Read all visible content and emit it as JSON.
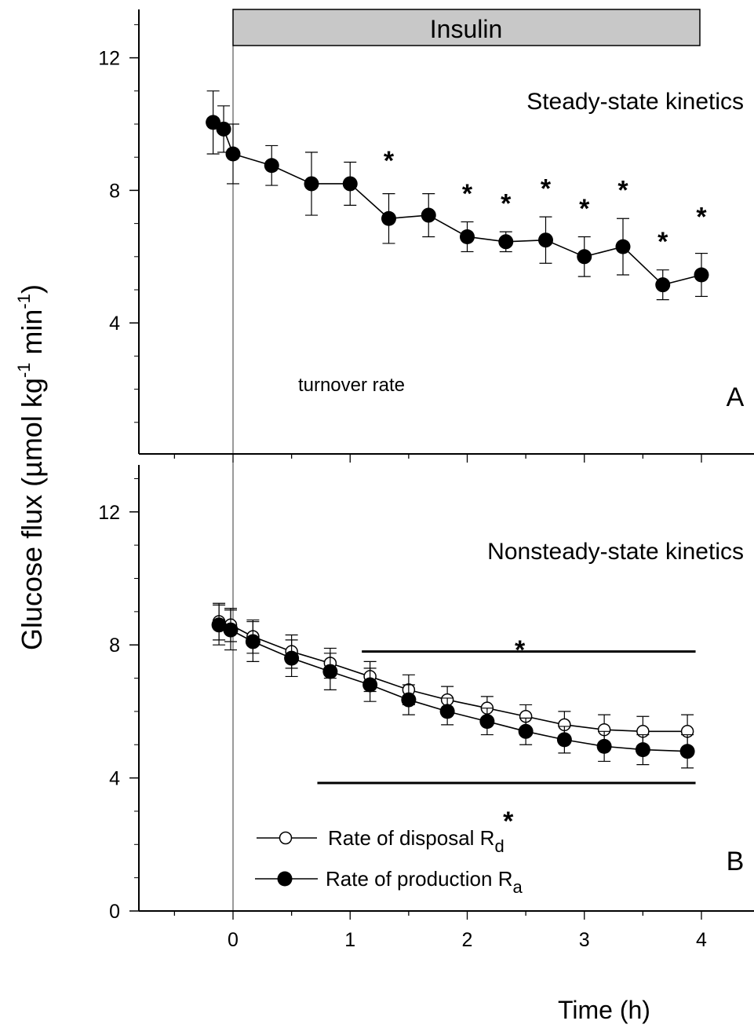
{
  "chart_data": [
    {
      "panel": "A",
      "type": "line",
      "title": "Steady-state kinetics",
      "annotation": "turnover rate",
      "treatment_bar": "Insulin",
      "xlabel": "Time (h)",
      "ylabel": "Glucose flux (µmol kg-1 min-1)",
      "ylim": [
        0,
        13.5
      ],
      "xlim": [
        -0.8,
        4.45
      ],
      "yticks": [
        4,
        8,
        12
      ],
      "series": [
        {
          "marker": "filled",
          "x": [
            -0.17,
            -0.08,
            0,
            0.33,
            0.67,
            1.0,
            1.33,
            1.67,
            2.0,
            2.33,
            2.67,
            3.0,
            3.33,
            3.67,
            4.0
          ],
          "y": [
            10.05,
            9.85,
            9.1,
            8.75,
            8.2,
            8.2,
            7.15,
            7.25,
            6.6,
            6.45,
            6.5,
            6.0,
            6.3,
            5.15,
            5.45
          ],
          "err": [
            0.95,
            0.7,
            0.9,
            0.6,
            0.95,
            0.65,
            0.75,
            0.65,
            0.45,
            0.3,
            0.7,
            0.6,
            0.85,
            0.45,
            0.65
          ]
        }
      ],
      "significance": [
        {
          "x": 1.33,
          "y": 9.2
        },
        {
          "x": 2.0,
          "y": 8.2
        },
        {
          "x": 2.33,
          "y": 7.9
        },
        {
          "x": 2.67,
          "y": 8.35
        },
        {
          "x": 3.0,
          "y": 7.75
        },
        {
          "x": 3.33,
          "y": 8.3
        },
        {
          "x": 3.67,
          "y": 6.75
        },
        {
          "x": 4.0,
          "y": 7.5
        }
      ]
    },
    {
      "panel": "B",
      "type": "line",
      "title": "Nonsteady-state kinetics",
      "xlabel": "Time (h)",
      "ylabel": "Glucose flux (µmol kg-1 min-1)",
      "ylim": [
        0,
        12.5
      ],
      "xlim": [
        -0.8,
        4.45
      ],
      "yticks": [
        0,
        4,
        8,
        12
      ],
      "xticks": [
        0,
        1,
        2,
        3,
        4
      ],
      "series": [
        {
          "name": "Rate of disposal R",
          "name_sub": "d",
          "marker": "open",
          "x": [
            -0.12,
            -0.02,
            0.17,
            0.5,
            0.83,
            1.17,
            1.5,
            1.83,
            2.17,
            2.5,
            2.83,
            3.17,
            3.5,
            3.88
          ],
          "y": [
            8.7,
            8.6,
            8.25,
            7.8,
            7.45,
            7.05,
            6.65,
            6.35,
            6.1,
            5.85,
            5.6,
            5.45,
            5.4,
            5.4
          ],
          "err": [
            0.55,
            0.5,
            0.5,
            0.5,
            0.45,
            0.45,
            0.45,
            0.4,
            0.35,
            0.35,
            0.4,
            0.45,
            0.45,
            0.5
          ]
        },
        {
          "name": "Rate of production R",
          "name_sub": "a",
          "marker": "filled",
          "x": [
            -0.12,
            -0.02,
            0.17,
            0.5,
            0.83,
            1.17,
            1.5,
            1.83,
            2.17,
            2.5,
            2.83,
            3.17,
            3.5,
            3.88
          ],
          "y": [
            8.6,
            8.45,
            8.1,
            7.6,
            7.2,
            6.8,
            6.35,
            6.0,
            5.7,
            5.4,
            5.15,
            4.95,
            4.85,
            4.8
          ],
          "err": [
            0.6,
            0.6,
            0.6,
            0.55,
            0.55,
            0.5,
            0.45,
            0.4,
            0.4,
            0.4,
            0.4,
            0.45,
            0.45,
            0.5
          ]
        }
      ],
      "significance_lines": [
        {
          "x1": 1.1,
          "x2": 3.95,
          "y": 7.8,
          "star_x": 2.45,
          "star_y": 8.15
        },
        {
          "x1": 0.72,
          "x2": 3.95,
          "y": 3.85,
          "star_x": 2.35,
          "star_y": 3.0
        }
      ]
    }
  ],
  "labels": {
    "insulin": "Insulin",
    "title_a": "Steady-state kinetics",
    "title_b": "Nonsteady-state kinetics",
    "annotation_a": "turnover rate",
    "panel_a": "A",
    "panel_b": "B",
    "star": "*",
    "x_axis_title": "Time (h)",
    "y_axis_main": "Glucose flux (µmol kg",
    "y_axis_exp1": "-1",
    "y_axis_mid": " min",
    "y_axis_exp2": "-1",
    "y_axis_end": ")",
    "legend_rd": "Rate of disposal R",
    "legend_rd_sub": "d",
    "legend_ra": "Rate of production R",
    "legend_ra_sub": "a"
  },
  "colors": {
    "insulin_bar": "#c8c8c8",
    "line": "#000000",
    "open_marker_fill": "#ffffff"
  }
}
